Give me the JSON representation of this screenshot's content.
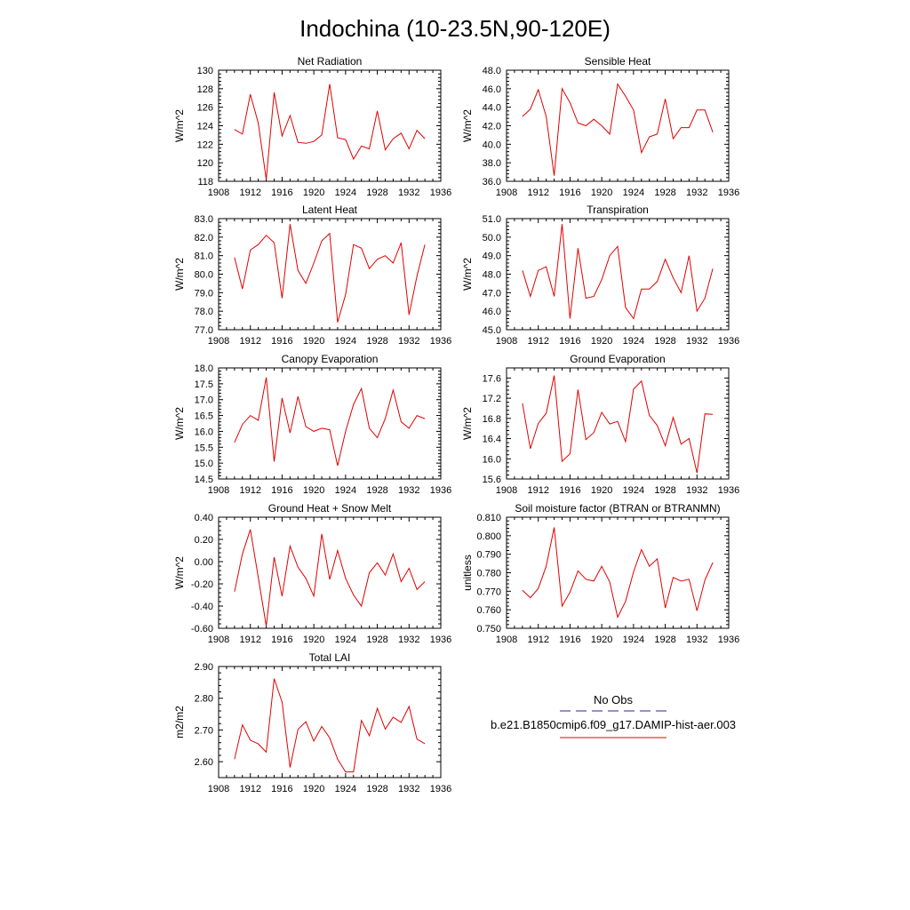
{
  "figure": {
    "title": "Indochina (10-23.5N,90-120E)"
  },
  "legend": {
    "entries": [
      {
        "label": "No Obs",
        "color": "#2a2a9a",
        "dash": "dashed"
      },
      {
        "label": "b.e21.B1850cmip6.f09_g17.DAMIP-hist-aer.003",
        "color": "#e00000",
        "dash": "solid"
      }
    ]
  },
  "chart_data": [
    {
      "type": "line",
      "title": "Net Radiation",
      "ylabel": "W/m^2",
      "xlim": [
        1908,
        1936
      ],
      "ylim": [
        118,
        130
      ],
      "xticks": [
        "1908",
        "1912",
        "1916",
        "1920",
        "1924",
        "1928",
        "1932",
        "1936"
      ],
      "yticks": [
        "118",
        "120",
        "122",
        "124",
        "126",
        "128",
        "130"
      ],
      "x": [
        1910,
        1911,
        1912,
        1913,
        1914,
        1915,
        1916,
        1917,
        1918,
        1919,
        1920,
        1921,
        1922,
        1923,
        1924,
        1925,
        1926,
        1927,
        1928,
        1929,
        1930,
        1931,
        1932,
        1933,
        1934
      ],
      "series": [
        {
          "color": "#e00000",
          "values": [
            123.6,
            123.1,
            127.4,
            124.3,
            118.2,
            127.6,
            122.9,
            125.1,
            122.2,
            122.1,
            122.3,
            123.0,
            128.5,
            122.7,
            122.5,
            120.4,
            121.8,
            121.5,
            125.6,
            121.4,
            122.6,
            123.2,
            121.5,
            123.5,
            122.6
          ]
        }
      ]
    },
    {
      "type": "line",
      "title": "Sensible Heat",
      "ylabel": "W/m^2",
      "xlim": [
        1908,
        1936
      ],
      "ylim": [
        36,
        48
      ],
      "xticks": [
        "1908",
        "1912",
        "1916",
        "1920",
        "1924",
        "1928",
        "1932",
        "1936"
      ],
      "yticks": [
        "36.0",
        "38.0",
        "40.0",
        "42.0",
        "44.0",
        "46.0",
        "48.0"
      ],
      "x": [
        1910,
        1911,
        1912,
        1913,
        1914,
        1915,
        1916,
        1917,
        1918,
        1919,
        1920,
        1921,
        1922,
        1923,
        1924,
        1925,
        1926,
        1927,
        1928,
        1929,
        1930,
        1931,
        1932,
        1933,
        1934
      ],
      "series": [
        {
          "color": "#e00000",
          "values": [
            43.0,
            43.8,
            45.9,
            43.0,
            36.6,
            46.0,
            44.5,
            42.3,
            42.0,
            42.7,
            42.0,
            41.1,
            46.5,
            45.2,
            43.7,
            39.1,
            40.8,
            41.1,
            44.9,
            40.6,
            41.8,
            41.8,
            43.7,
            43.7,
            41.3
          ]
        }
      ]
    },
    {
      "type": "line",
      "title": "Latent Heat",
      "ylabel": "W/m^2",
      "xlim": [
        1908,
        1936
      ],
      "ylim": [
        77,
        83
      ],
      "xticks": [
        "1908",
        "1912",
        "1916",
        "1920",
        "1924",
        "1928",
        "1932",
        "1936"
      ],
      "yticks": [
        "77.0",
        "78.0",
        "79.0",
        "80.0",
        "81.0",
        "82.0",
        "83.0"
      ],
      "x": [
        1910,
        1911,
        1912,
        1913,
        1914,
        1915,
        1916,
        1917,
        1918,
        1919,
        1920,
        1921,
        1922,
        1923,
        1924,
        1925,
        1926,
        1927,
        1928,
        1929,
        1930,
        1931,
        1932,
        1933,
        1934
      ],
      "series": [
        {
          "color": "#e00000",
          "values": [
            80.9,
            79.2,
            81.3,
            81.6,
            82.1,
            81.7,
            78.7,
            82.7,
            80.2,
            79.5,
            80.6,
            81.8,
            82.2,
            77.4,
            78.9,
            81.6,
            81.4,
            80.3,
            80.8,
            81.0,
            80.6,
            81.7,
            77.8,
            79.9,
            81.6
          ]
        }
      ]
    },
    {
      "type": "line",
      "title": "Transpiration",
      "ylabel": "W/m^2",
      "xlim": [
        1908,
        1936
      ],
      "ylim": [
        45,
        51
      ],
      "xticks": [
        "1908",
        "1912",
        "1916",
        "1920",
        "1924",
        "1928",
        "1932",
        "1936"
      ],
      "yticks": [
        "45.0",
        "46.0",
        "47.0",
        "48.0",
        "49.0",
        "50.0",
        "51.0"
      ],
      "x": [
        1910,
        1911,
        1912,
        1913,
        1914,
        1915,
        1916,
        1917,
        1918,
        1919,
        1920,
        1921,
        1922,
        1923,
        1924,
        1925,
        1926,
        1927,
        1928,
        1929,
        1930,
        1931,
        1932,
        1933,
        1934
      ],
      "series": [
        {
          "color": "#e00000",
          "values": [
            48.2,
            46.8,
            48.2,
            48.4,
            46.8,
            50.7,
            45.6,
            49.4,
            46.7,
            46.8,
            47.7,
            49.0,
            49.5,
            46.2,
            45.6,
            47.2,
            47.2,
            47.6,
            48.8,
            47.8,
            47.0,
            49.0,
            46.0,
            46.7,
            48.3
          ]
        }
      ]
    },
    {
      "type": "line",
      "title": "Canopy Evaporation",
      "ylabel": "W/m^2",
      "xlim": [
        1908,
        1936
      ],
      "ylim": [
        14.5,
        18
      ],
      "xticks": [
        "1908",
        "1912",
        "1916",
        "1920",
        "1924",
        "1928",
        "1932",
        "1936"
      ],
      "yticks": [
        "14.5",
        "15.0",
        "15.5",
        "16.0",
        "16.5",
        "17.0",
        "17.5",
        "18.0"
      ],
      "x": [
        1910,
        1911,
        1912,
        1913,
        1914,
        1915,
        1916,
        1917,
        1918,
        1919,
        1920,
        1921,
        1922,
        1923,
        1924,
        1925,
        1926,
        1927,
        1928,
        1929,
        1930,
        1931,
        1932,
        1933,
        1934
      ],
      "series": [
        {
          "color": "#e00000",
          "values": [
            15.65,
            16.22,
            16.5,
            16.35,
            17.7,
            15.05,
            17.05,
            15.95,
            17.1,
            16.15,
            16.0,
            16.1,
            16.05,
            14.92,
            16.0,
            16.85,
            17.35,
            16.1,
            15.8,
            16.4,
            17.3,
            16.3,
            16.1,
            16.5,
            16.4
          ]
        }
      ]
    },
    {
      "type": "line",
      "title": "Ground Evaporation",
      "ylabel": "W/m^2",
      "xlim": [
        1908,
        1936
      ],
      "ylim": [
        15.6,
        17.8
      ],
      "xticks": [
        "1908",
        "1912",
        "1916",
        "1920",
        "1924",
        "1928",
        "1932",
        "1936"
      ],
      "yticks": [
        "15.6",
        "16.0",
        "16.4",
        "16.8",
        "17.2",
        "17.6"
      ],
      "x": [
        1910,
        1911,
        1912,
        1913,
        1914,
        1915,
        1916,
        1917,
        1918,
        1919,
        1920,
        1921,
        1922,
        1923,
        1924,
        1925,
        1926,
        1927,
        1928,
        1929,
        1930,
        1931,
        1932,
        1933,
        1934
      ],
      "series": [
        {
          "color": "#e00000",
          "values": [
            17.1,
            16.2,
            16.7,
            16.9,
            17.65,
            15.95,
            16.1,
            17.37,
            16.38,
            16.52,
            16.92,
            16.69,
            16.74,
            16.34,
            17.38,
            17.54,
            16.86,
            16.66,
            16.26,
            16.82,
            16.29,
            16.4,
            15.72,
            16.89,
            16.88
          ]
        }
      ]
    },
    {
      "type": "line",
      "title": "Ground Heat + Snow Melt",
      "ylabel": "W/m^2",
      "xlim": [
        1908,
        1936
      ],
      "ylim": [
        -0.6,
        0.4
      ],
      "xticks": [
        "1908",
        "1912",
        "1916",
        "1920",
        "1924",
        "1928",
        "1932",
        "1936"
      ],
      "yticks": [
        "-0.60",
        "-0.40",
        "-0.20",
        "0.00",
        "0.20",
        "0.40"
      ],
      "x": [
        1910,
        1911,
        1912,
        1913,
        1914,
        1915,
        1916,
        1917,
        1918,
        1919,
        1920,
        1921,
        1922,
        1923,
        1924,
        1925,
        1926,
        1927,
        1928,
        1929,
        1930,
        1931,
        1932,
        1933,
        1934
      ],
      "series": [
        {
          "color": "#e00000",
          "values": [
            -0.27,
            0.07,
            0.29,
            -0.14,
            -0.58,
            0.04,
            -0.31,
            0.14,
            -0.05,
            -0.15,
            -0.31,
            0.25,
            -0.16,
            0.1,
            -0.15,
            -0.3,
            -0.4,
            -0.1,
            -0.01,
            -0.12,
            0.07,
            -0.18,
            -0.06,
            -0.25,
            -0.18
          ]
        }
      ]
    },
    {
      "type": "line",
      "title": "Soil moisture factor (BTRAN or BTRANMN)",
      "ylabel": "unitless",
      "xlim": [
        1908,
        1936
      ],
      "ylim": [
        0.75,
        0.81
      ],
      "xticks": [
        "1908",
        "1912",
        "1916",
        "1920",
        "1924",
        "1928",
        "1932",
        "1936"
      ],
      "yticks": [
        "0.750",
        "0.760",
        "0.770",
        "0.780",
        "0.790",
        "0.800",
        "0.810"
      ],
      "x": [
        1910,
        1911,
        1912,
        1913,
        1914,
        1915,
        1916,
        1917,
        1918,
        1919,
        1920,
        1921,
        1922,
        1923,
        1924,
        1925,
        1926,
        1927,
        1928,
        1929,
        1930,
        1931,
        1932,
        1933,
        1934
      ],
      "series": [
        {
          "color": "#e00000",
          "values": [
            0.7705,
            0.7665,
            0.7715,
            0.7835,
            0.8045,
            0.762,
            0.7695,
            0.781,
            0.7765,
            0.7755,
            0.7835,
            0.775,
            0.756,
            0.7645,
            0.7805,
            0.7925,
            0.7835,
            0.7875,
            0.761,
            0.7775,
            0.7755,
            0.7765,
            0.7595,
            0.776,
            0.7855
          ]
        }
      ]
    },
    {
      "type": "line",
      "title": "Total LAI",
      "ylabel": "m2/m2",
      "xlim": [
        1908,
        1936
      ],
      "ylim": [
        2.55,
        2.9
      ],
      "xticks": [
        "1908",
        "1912",
        "1916",
        "1920",
        "1924",
        "1928",
        "1932",
        "1936"
      ],
      "yticks": [
        "2.60",
        "2.70",
        "2.80",
        "2.90"
      ],
      "x": [
        1910,
        1911,
        1912,
        1913,
        1914,
        1915,
        1916,
        1917,
        1918,
        1919,
        1920,
        1921,
        1922,
        1923,
        1924,
        1925,
        1926,
        1927,
        1928,
        1929,
        1930,
        1931,
        1932,
        1933,
        1934
      ],
      "series": [
        {
          "color": "#e00000",
          "values": [
            2.608,
            2.716,
            2.668,
            2.656,
            2.63,
            2.862,
            2.788,
            2.582,
            2.702,
            2.726,
            2.665,
            2.711,
            2.675,
            2.608,
            2.568,
            2.568,
            2.73,
            2.682,
            2.768,
            2.703,
            2.74,
            2.724,
            2.774,
            2.671,
            2.657
          ]
        }
      ]
    }
  ]
}
